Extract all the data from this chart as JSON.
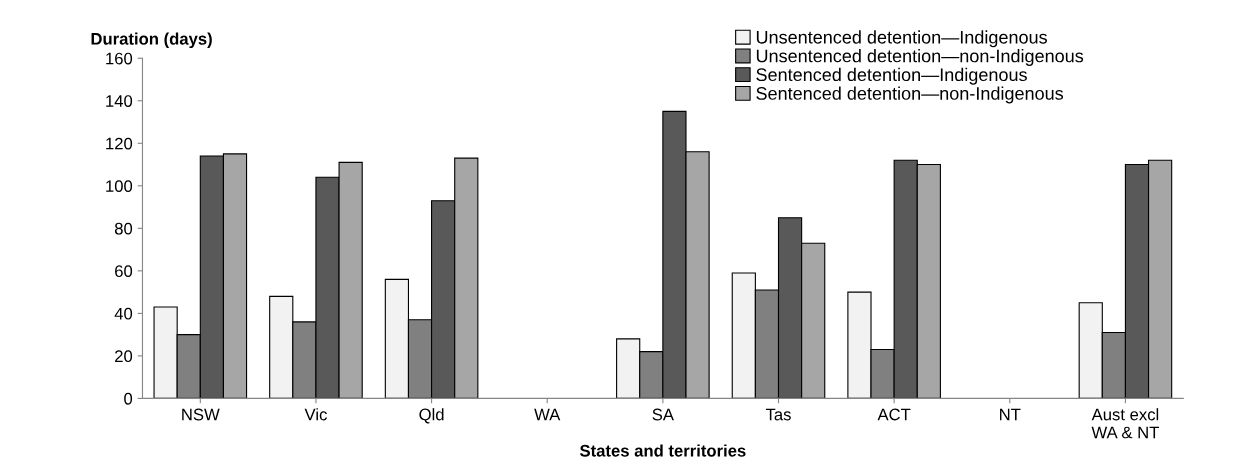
{
  "chart_data": {
    "type": "bar",
    "xlabel": "States and territories",
    "ylabel": "Duration (days)",
    "categories": [
      "NSW",
      "Vic",
      "Qld",
      "WA",
      "SA",
      "Tas",
      "ACT",
      "NT",
      "Aust excl\nWA & NT"
    ],
    "series": [
      {
        "name": "Unsentenced detention—Indigenous",
        "color": "#f2f2f2",
        "values": [
          43,
          48,
          56,
          null,
          28,
          59,
          50,
          null,
          45
        ]
      },
      {
        "name": "Unsentenced detention—non-Indigenous",
        "color": "#808080",
        "values": [
          30,
          36,
          37,
          null,
          22,
          51,
          23,
          null,
          31
        ]
      },
      {
        "name": "Sentenced detention—Indigenous",
        "color": "#595959",
        "values": [
          114,
          104,
          93,
          null,
          135,
          85,
          112,
          null,
          110
        ]
      },
      {
        "name": "Sentenced detention—non-Indigenous",
        "color": "#a6a6a6",
        "values": [
          115,
          111,
          113,
          null,
          116,
          73,
          110,
          null,
          112
        ]
      }
    ],
    "ylim": [
      0,
      160
    ],
    "yticks": [
      0,
      20,
      40,
      60,
      80,
      100,
      120,
      140,
      160
    ],
    "grid": false,
    "legend": "top right"
  }
}
